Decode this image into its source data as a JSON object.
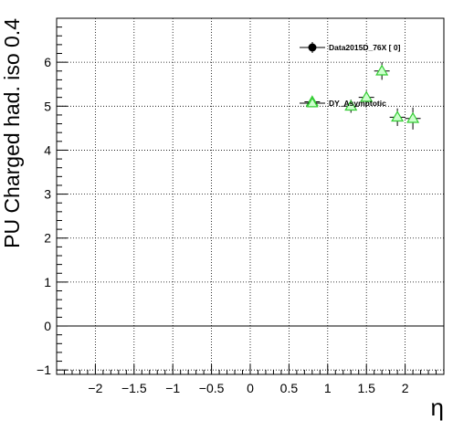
{
  "chart_data": {
    "type": "scatter",
    "title": "",
    "xlabel": "η",
    "ylabel": "PU Charged had. iso 0.4",
    "xlim": [
      -2.5,
      2.5
    ],
    "ylim": [
      -1.1,
      7.0
    ],
    "xticks": [
      -2,
      -1.5,
      -1,
      -0.5,
      0,
      0.5,
      1,
      1.5,
      2
    ],
    "xtick_labels": [
      "−2",
      "−1.5",
      "−1",
      "−0.5",
      "0",
      "0.5",
      "1",
      "1.5",
      "2"
    ],
    "yticks": [
      -1,
      0,
      1,
      2,
      3,
      4,
      5,
      6
    ],
    "ytick_labels": [
      "−1",
      "0",
      "1",
      "2",
      "3",
      "4",
      "5",
      "6"
    ],
    "grid": true,
    "zero_line": true,
    "legend_position": "top-right",
    "series": [
      {
        "name": "Data2015D_76X [        0]",
        "marker": "filled-circle",
        "color": "#000000",
        "x": [],
        "y": [],
        "xerr": [],
        "yerr": []
      },
      {
        "name": "DY_Asymptotic",
        "marker": "open-triangle",
        "color": "#33cc33",
        "fill": "#ccffcc",
        "x": [
          0.8,
          1.3,
          1.5,
          1.7,
          1.9,
          2.1
        ],
        "y": [
          5.1,
          5.0,
          5.2,
          5.8,
          4.75,
          4.72
        ],
        "xerr": [
          0.1,
          0.1,
          0.1,
          0.1,
          0.1,
          0.1
        ],
        "yerr": [
          0.1,
          0.15,
          0.15,
          0.2,
          0.2,
          0.25
        ]
      }
    ]
  }
}
